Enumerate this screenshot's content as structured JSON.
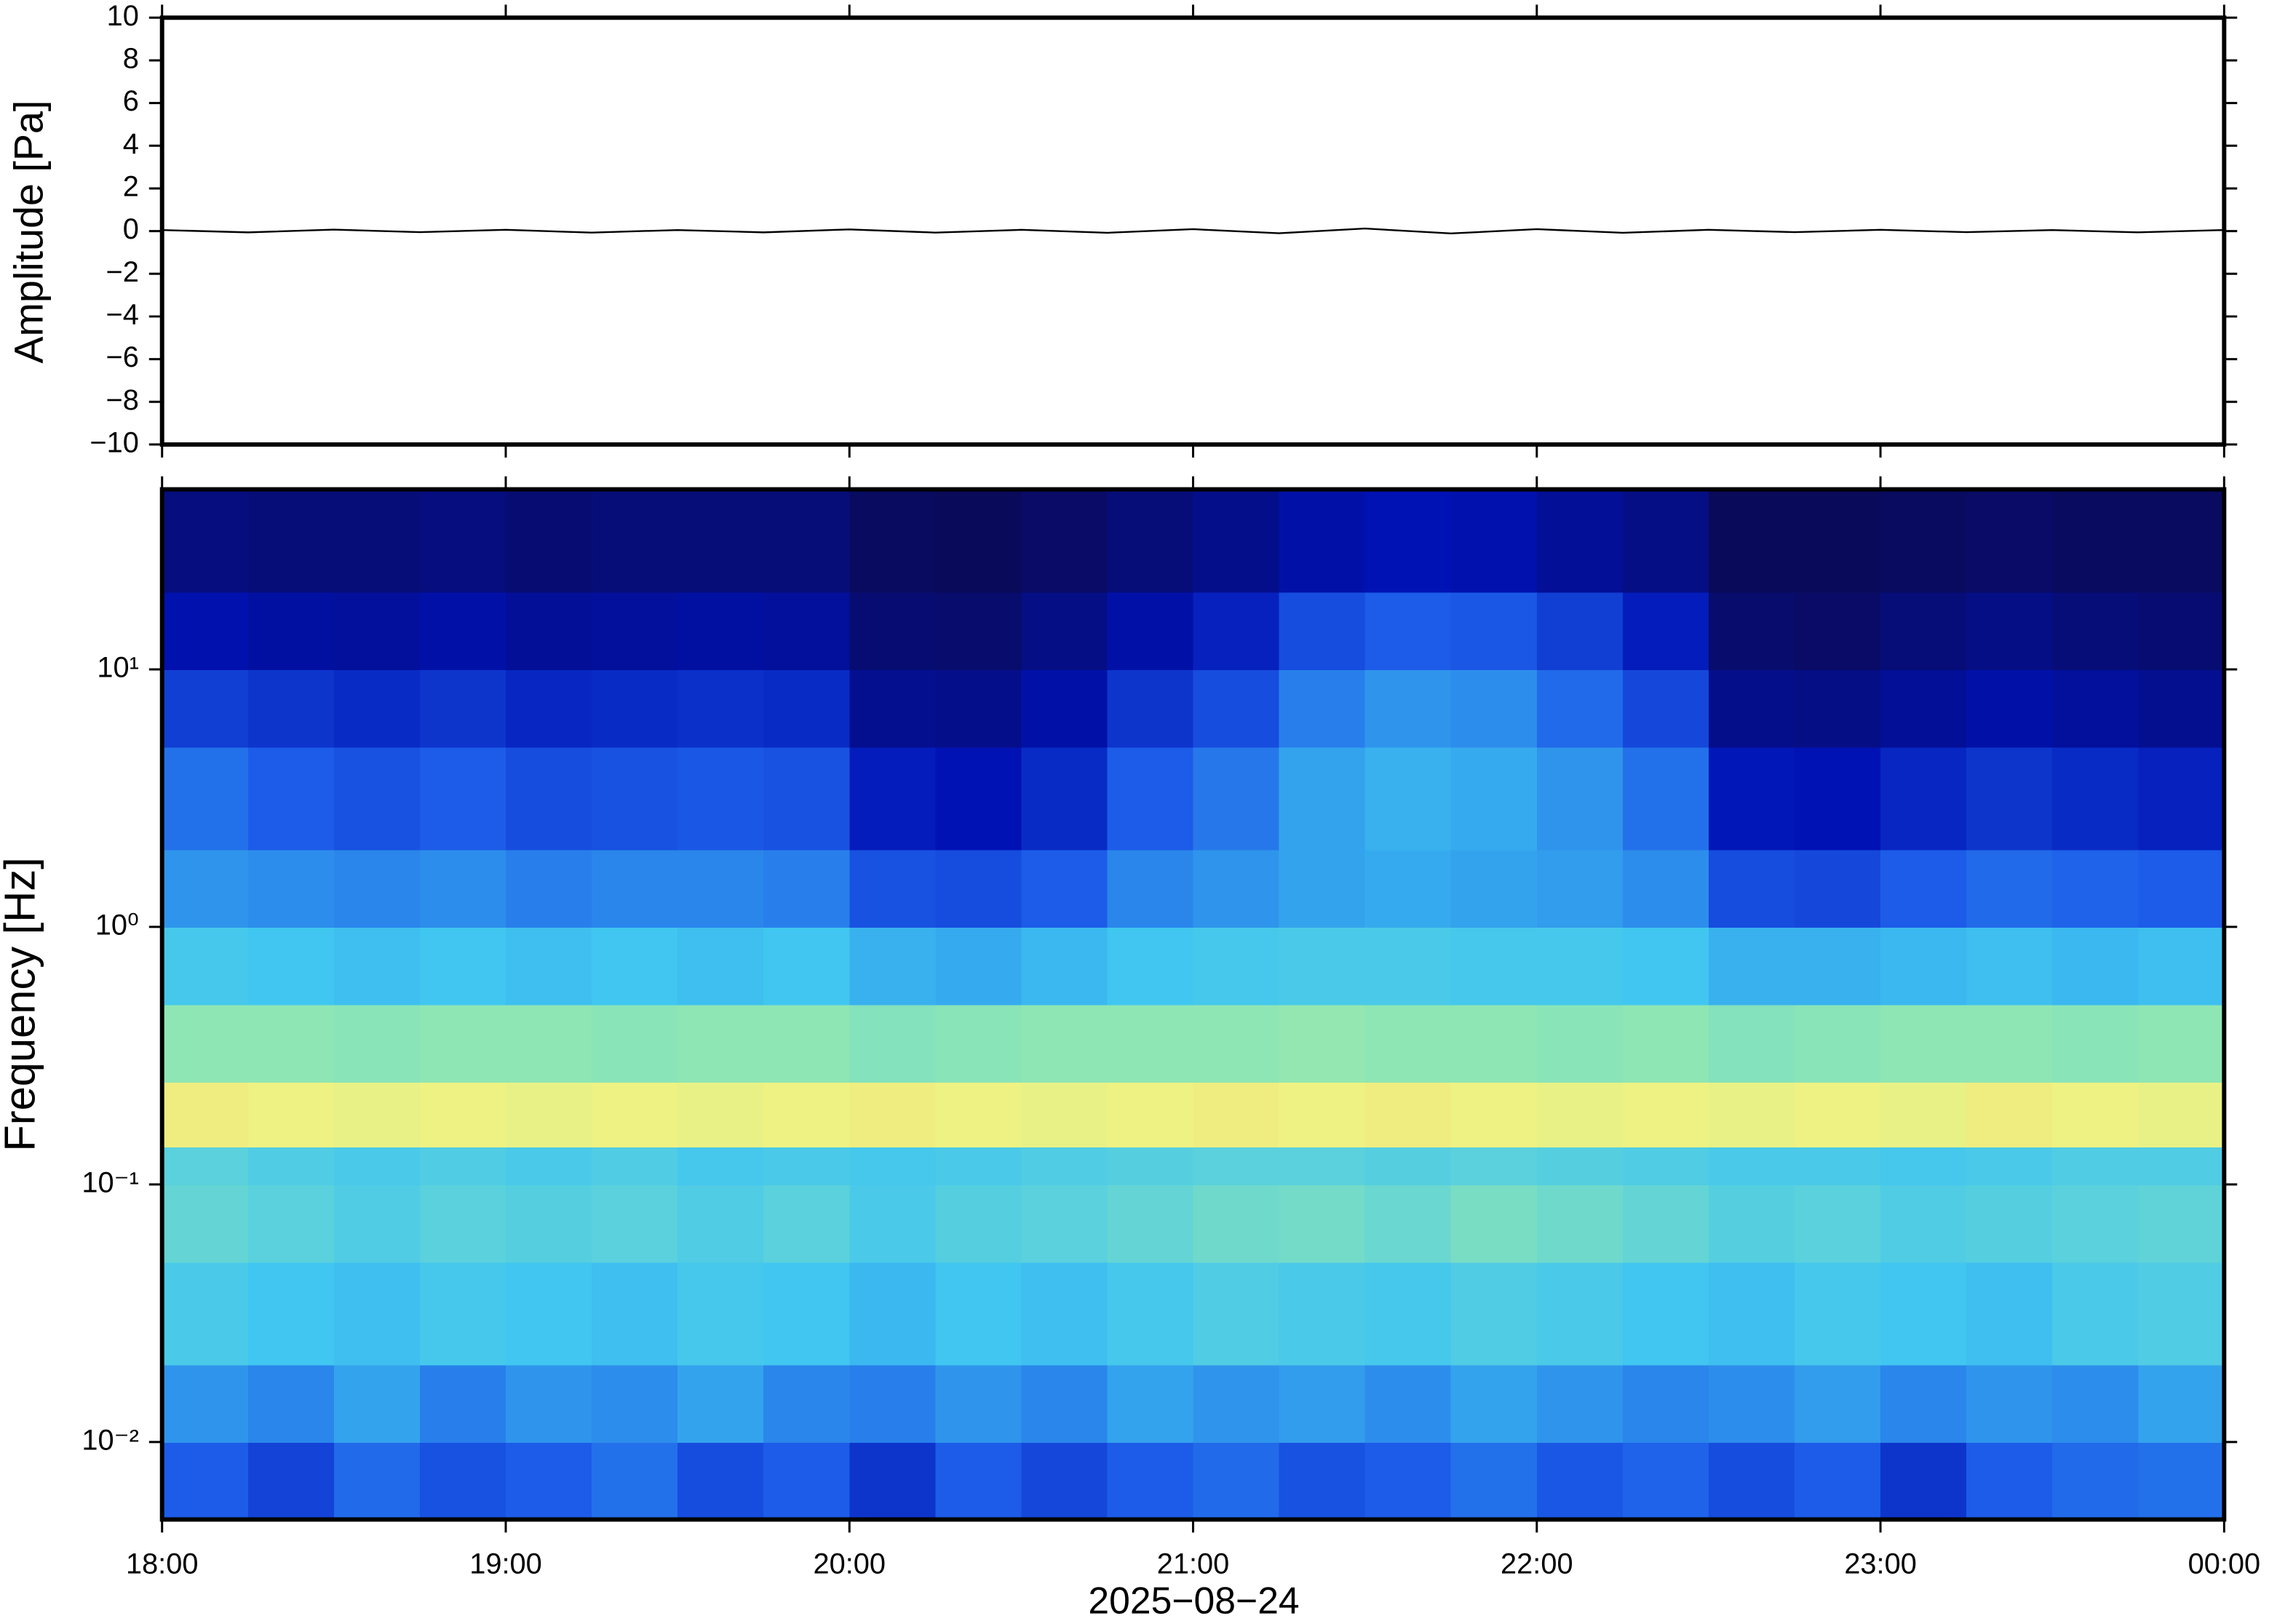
{
  "chart_data": [
    {
      "type": "line",
      "ylabel": "Amplitude [Pa]",
      "xlim": [
        18,
        24
      ],
      "xticks": [
        18,
        19,
        20,
        21,
        22,
        23,
        24
      ],
      "ylim": [
        -10,
        10
      ],
      "yticks": [
        {
          "value": -10,
          "label": "−10"
        },
        {
          "value": -8,
          "label": "−8"
        },
        {
          "value": -6,
          "label": "−6"
        },
        {
          "value": -4,
          "label": "−4"
        },
        {
          "value": -2,
          "label": "−2"
        },
        0,
        2,
        4,
        6,
        8,
        10
      ],
      "color": "#000000",
      "x": [
        18,
        18.25,
        18.5,
        18.75,
        19,
        19.25,
        19.5,
        19.75,
        20,
        20.25,
        20.5,
        20.75,
        21,
        21.25,
        21.5,
        21.75,
        22,
        22.25,
        22.5,
        22.75,
        23,
        23.25,
        23.5,
        23.75,
        24
      ],
      "values": [
        0.05,
        -0.06,
        0.07,
        -0.05,
        0.06,
        -0.07,
        0.05,
        -0.06,
        0.08,
        -0.07,
        0.06,
        -0.08,
        0.09,
        -0.1,
        0.12,
        -0.11,
        0.09,
        -0.08,
        0.06,
        -0.05,
        0.06,
        -0.05,
        0.05,
        -0.06,
        0.05
      ]
    },
    {
      "type": "heatmap",
      "ylabel": "Frequency [Hz]",
      "xlabel": "2025−08−24",
      "xlim": [
        18,
        24
      ],
      "xticks": [
        {
          "value": 18,
          "label": "18:00"
        },
        {
          "value": 19,
          "label": "19:00"
        },
        {
          "value": 20,
          "label": "20:00"
        },
        {
          "value": 21,
          "label": "21:00"
        },
        {
          "value": 22,
          "label": "22:00"
        },
        {
          "value": 23,
          "label": "23:00"
        },
        {
          "value": 24,
          "label": "00:00"
        }
      ],
      "ylim": [
        0.005,
        50
      ],
      "ylog": true,
      "yticks": [
        {
          "value": 0.01,
          "label": "10⁻²"
        },
        {
          "value": 0.1,
          "label": "10⁻¹"
        },
        {
          "value": 1,
          "label": "10⁰"
        },
        {
          "value": 10,
          "label": "10¹"
        }
      ],
      "colormap": [
        {
          "at": 0,
          "color": "#0a0a5a"
        },
        {
          "at": 0.15,
          "color": "#0012b4"
        },
        {
          "at": 0.3,
          "color": "#1c5ce8"
        },
        {
          "at": 0.45,
          "color": "#40c6f0"
        },
        {
          "at": 0.6,
          "color": "#8ee6b4"
        },
        {
          "at": 0.75,
          "color": "#eef282"
        },
        {
          "at": 0.88,
          "color": "#f8b462"
        },
        {
          "at": 1,
          "color": "#f08040"
        }
      ],
      "x_edges": [
        18,
        18.25,
        18.5,
        18.75,
        19,
        19.25,
        19.5,
        19.75,
        20,
        20.25,
        20.5,
        20.75,
        21,
        21.25,
        21.5,
        21.75,
        22,
        22.25,
        22.5,
        22.75,
        23,
        23.25,
        23.5,
        23.75,
        24
      ],
      "y_edges": [
        0.005,
        0.01,
        0.02,
        0.05,
        0.1,
        0.14,
        0.25,
        0.5,
        1,
        2,
        5,
        10,
        20,
        50
      ],
      "z": [
        [
          0.3,
          0.25,
          0.32,
          0.28,
          0.3,
          0.33,
          0.27,
          0.3,
          0.22,
          0.3,
          0.26,
          0.3,
          0.32,
          0.28,
          0.3,
          0.33,
          0.29,
          0.31,
          0.27,
          0.3,
          0.22,
          0.3,
          0.32,
          0.33
        ],
        [
          0.38,
          0.36,
          0.4,
          0.35,
          0.38,
          0.37,
          0.4,
          0.36,
          0.35,
          0.38,
          0.36,
          0.4,
          0.38,
          0.39,
          0.37,
          0.4,
          0.38,
          0.36,
          0.37,
          0.39,
          0.36,
          0.38,
          0.37,
          0.4
        ],
        [
          0.47,
          0.45,
          0.44,
          0.46,
          0.45,
          0.44,
          0.46,
          0.45,
          0.43,
          0.45,
          0.44,
          0.46,
          0.48,
          0.47,
          0.46,
          0.48,
          0.47,
          0.45,
          0.44,
          0.46,
          0.45,
          0.44,
          0.47,
          0.48
        ],
        [
          0.52,
          0.5,
          0.48,
          0.5,
          0.49,
          0.5,
          0.48,
          0.5,
          0.47,
          0.49,
          0.5,
          0.52,
          0.54,
          0.55,
          0.53,
          0.56,
          0.54,
          0.52,
          0.49,
          0.5,
          0.48,
          0.49,
          0.5,
          0.51
        ],
        [
          0.5,
          0.48,
          0.47,
          0.48,
          0.47,
          0.48,
          0.46,
          0.47,
          0.46,
          0.47,
          0.48,
          0.49,
          0.5,
          0.5,
          0.49,
          0.5,
          0.49,
          0.48,
          0.47,
          0.47,
          0.46,
          0.47,
          0.48,
          0.48
        ],
        [
          0.76,
          0.75,
          0.74,
          0.75,
          0.74,
          0.75,
          0.74,
          0.75,
          0.76,
          0.75,
          0.74,
          0.75,
          0.76,
          0.75,
          0.76,
          0.75,
          0.74,
          0.75,
          0.74,
          0.75,
          0.74,
          0.76,
          0.75,
          0.74
        ],
        [
          0.6,
          0.6,
          0.59,
          0.6,
          0.6,
          0.59,
          0.6,
          0.6,
          0.58,
          0.59,
          0.6,
          0.6,
          0.6,
          0.61,
          0.6,
          0.6,
          0.59,
          0.6,
          0.58,
          0.59,
          0.6,
          0.6,
          0.59,
          0.6
        ],
        [
          0.46,
          0.45,
          0.44,
          0.45,
          0.44,
          0.45,
          0.44,
          0.45,
          0.42,
          0.41,
          0.43,
          0.45,
          0.46,
          0.47,
          0.47,
          0.46,
          0.46,
          0.45,
          0.42,
          0.42,
          0.43,
          0.44,
          0.43,
          0.44
        ],
        [
          0.38,
          0.37,
          0.36,
          0.37,
          0.35,
          0.36,
          0.36,
          0.35,
          0.28,
          0.27,
          0.3,
          0.36,
          0.38,
          0.4,
          0.41,
          0.4,
          0.39,
          0.37,
          0.27,
          0.26,
          0.3,
          0.32,
          0.31,
          0.3
        ],
        [
          0.33,
          0.3,
          0.28,
          0.3,
          0.27,
          0.28,
          0.29,
          0.28,
          0.17,
          0.15,
          0.2,
          0.3,
          0.34,
          0.4,
          0.42,
          0.41,
          0.38,
          0.33,
          0.16,
          0.15,
          0.19,
          0.22,
          0.2,
          0.18
        ],
        [
          0.24,
          0.22,
          0.2,
          0.22,
          0.19,
          0.2,
          0.21,
          0.2,
          0.09,
          0.08,
          0.13,
          0.22,
          0.27,
          0.35,
          0.38,
          0.37,
          0.32,
          0.26,
          0.08,
          0.07,
          0.1,
          0.13,
          0.11,
          0.09
        ],
        [
          0.14,
          0.12,
          0.11,
          0.13,
          0.1,
          0.11,
          0.12,
          0.11,
          0.04,
          0.03,
          0.07,
          0.13,
          0.18,
          0.27,
          0.3,
          0.29,
          0.24,
          0.17,
          0.03,
          0.02,
          0.05,
          0.07,
          0.05,
          0.04
        ],
        [
          0.06,
          0.05,
          0.05,
          0.06,
          0.04,
          0.05,
          0.05,
          0.05,
          0.01,
          0.0,
          0.02,
          0.05,
          0.08,
          0.13,
          0.15,
          0.14,
          0.1,
          0.07,
          0.0,
          0.0,
          0.01,
          0.02,
          0.01,
          0.01
        ]
      ]
    }
  ]
}
